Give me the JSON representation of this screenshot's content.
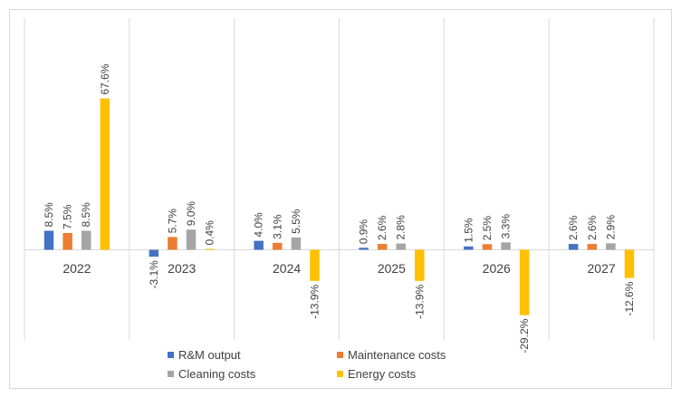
{
  "chart_data": {
    "type": "bar",
    "categories": [
      "2022",
      "2023",
      "2024",
      "2025",
      "2026",
      "2027"
    ],
    "series": [
      {
        "name": "R&M output",
        "color": "#4472C4",
        "values": [
          8.5,
          -3.1,
          4.0,
          0.9,
          1.5,
          2.6
        ],
        "labels": [
          "8.5%",
          "-3.1%",
          "4.0%",
          "0.9%",
          "1.5%",
          "2.6%"
        ]
      },
      {
        "name": "Maintenance costs",
        "color": "#ED7D31",
        "values": [
          7.5,
          5.7,
          3.1,
          2.6,
          2.5,
          2.6
        ],
        "labels": [
          "7.5%",
          "5.7%",
          "3.1%",
          "2.6%",
          "2.5%",
          "2.6%"
        ]
      },
      {
        "name": "Cleaning costs",
        "color": "#A5A5A5",
        "values": [
          8.5,
          9.0,
          5.5,
          2.8,
          3.3,
          2.9
        ],
        "labels": [
          "8.5%",
          "9.0%",
          "5.5%",
          "2.8%",
          "3.3%",
          "2.9%"
        ]
      },
      {
        "name": "Energy costs",
        "color": "#FFC000",
        "values": [
          67.6,
          0.4,
          -13.9,
          -13.9,
          -29.2,
          -12.6
        ],
        "labels": [
          "67.6%",
          "0.4%",
          "-13.9%",
          "-13.9%",
          "-29.2%",
          "-12.6%"
        ]
      }
    ],
    "ylim": [
      -40,
      100
    ],
    "legend_position": "bottom",
    "gridlines": "vertical separators between categories"
  }
}
